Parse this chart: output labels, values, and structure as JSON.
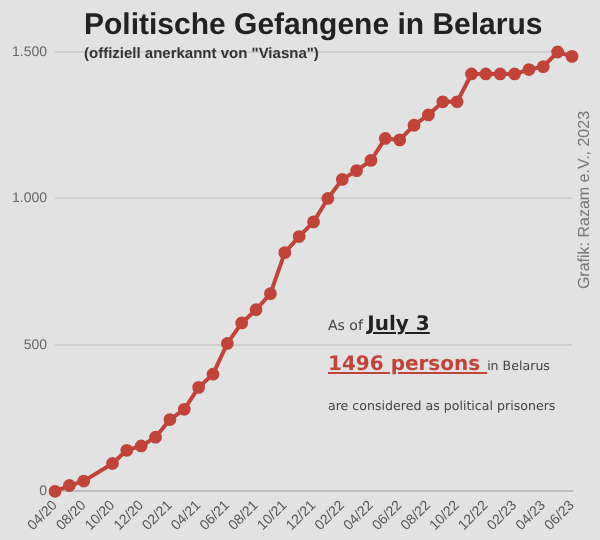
{
  "chart_data": {
    "type": "line",
    "title": "Politische Gefangene in Belarus",
    "subtitle": "(offiziell anerkannt von \"Viasna\")",
    "categories": [
      "04/20",
      null,
      "08/20",
      null,
      "10/20",
      null,
      "12/20",
      null,
      "02/21",
      null,
      "04/21",
      null,
      "06/21",
      null,
      "08/21",
      null,
      "10/21",
      null,
      "12/21",
      null,
      "02/22",
      null,
      "04/22",
      null,
      "06/22",
      null,
      "08/22",
      null,
      "10/22",
      null,
      "12/22",
      null,
      "02/23",
      null,
      "04/23",
      null,
      "06/23"
    ],
    "series": [
      {
        "color": "#c0443a",
        "values": [
          0,
          20,
          35,
          null,
          95,
          140,
          155,
          185,
          245,
          280,
          355,
          400,
          505,
          575,
          620,
          675,
          815,
          870,
          920,
          1000,
          1065,
          1095,
          1130,
          1205,
          1200,
          1250,
          1285,
          1330,
          1330,
          1425,
          1425,
          1425,
          1425,
          1440,
          1450,
          1500,
          1485
        ]
      }
    ],
    "ylim": [
      0,
      1500
    ],
    "yticks": [
      0,
      500,
      {
        "value": 1000,
        "label": "1.000"
      },
      {
        "value": 1500,
        "label": "1.500"
      }
    ],
    "grid": "y",
    "marker": "circle",
    "line_style": "solid",
    "legend": false,
    "annotations": [
      "Grafik: Razam e.V., 2023",
      "As of",
      "July 3",
      "1496 persons",
      "in Belarus are considered as political prisoners"
    ]
  }
}
